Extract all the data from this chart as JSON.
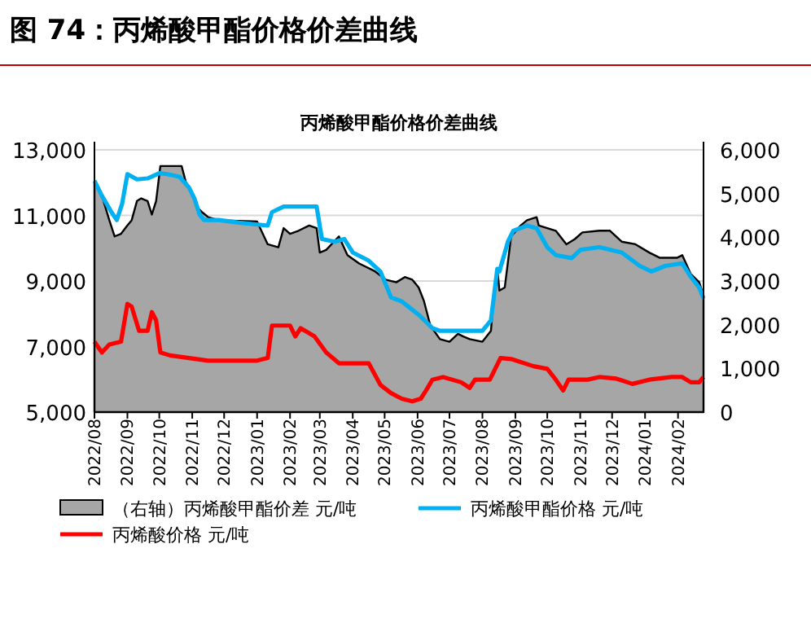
{
  "chart_data": {
    "type": "line",
    "title": "图 74：丙烯酸甲酯价格价差曲线",
    "subtitle": "丙烯酸甲酯价格价差曲线",
    "xlim": [
      "2022-08-01",
      "2024-02-25"
    ],
    "xticks": [
      {
        "value": "2022-08",
        "label": "2022/08"
      },
      {
        "value": "2022-09",
        "label": "2022/09"
      },
      {
        "value": "2022-10",
        "label": "2022/10"
      },
      {
        "value": "2022-11",
        "label": "2022/11"
      },
      {
        "value": "2022-12",
        "label": "2022/12"
      },
      {
        "value": "2023-01",
        "label": "2023/01"
      },
      {
        "value": "2023-02",
        "label": "2023/02"
      },
      {
        "value": "2023-03",
        "label": "2023/03"
      },
      {
        "value": "2023-04",
        "label": "2023/04"
      },
      {
        "value": "2023-05",
        "label": "2023/05"
      },
      {
        "value": "2023-06",
        "label": "2023/06"
      },
      {
        "value": "2023-07",
        "label": "2023/07"
      },
      {
        "value": "2023-08",
        "label": "2023/08"
      },
      {
        "value": "2023-09",
        "label": "2023/09"
      },
      {
        "value": "2023-10",
        "label": "2023/10"
      },
      {
        "value": "2023-11",
        "label": "2023/11"
      },
      {
        "value": "2023-12",
        "label": "2023/12"
      },
      {
        "value": "2024-01",
        "label": "2024/01"
      },
      {
        "value": "2024-02",
        "label": "2024/02"
      }
    ],
    "ylim": [
      5000,
      13000
    ],
    "yticks": [
      {
        "value": 5000,
        "label": "5,000"
      },
      {
        "value": 7000,
        "label": "7,000"
      },
      {
        "value": 9000,
        "label": "9,000"
      },
      {
        "value": 11000,
        "label": "11,000"
      },
      {
        "value": 13000,
        "label": "13,000"
      }
    ],
    "y2lim": [
      0,
      6000
    ],
    "y2ticks": [
      0,
      {
        "value": 1000,
        "label": "1,000"
      },
      {
        "value": 2000,
        "label": "2,000"
      },
      {
        "value": 3000,
        "label": "3,000"
      },
      {
        "value": 4000,
        "label": "4,000"
      },
      {
        "value": 5000,
        "label": "5,000"
      },
      {
        "value": 6000,
        "label": "6,000"
      }
    ],
    "grid": "y",
    "legend": "bottom",
    "line_style": "solid",
    "series": [
      {
        "type": "area",
        "axis": "y2",
        "name": "（右轴）丙烯酸甲酯价差 元/吨",
        "color": "#a6a6a6",
        "x": [
          "2022-08-01",
          "2022-08-08",
          "2022-08-15",
          "2022-08-20",
          "2022-08-26",
          "2022-09-01",
          "2022-09-05",
          "2022-09-10",
          "2022-09-14",
          "2022-09-20",
          "2022-09-24",
          "2022-09-28",
          "2022-10-02",
          "2022-10-22",
          "2022-10-26",
          "2022-11-01",
          "2022-11-05",
          "2022-11-10",
          "2022-11-16",
          "2022-11-26",
          "2023-01-01",
          "2023-01-11",
          "2023-01-21",
          "2023-01-26",
          "2023-02-01",
          "2023-02-09",
          "2023-02-19",
          "2023-02-26",
          "2023-03-01",
          "2023-03-07",
          "2023-03-19",
          "2023-03-27",
          "2023-04-07",
          "2023-04-22",
          "2023-05-02",
          "2023-05-12",
          "2023-05-20",
          "2023-05-27",
          "2023-06-02",
          "2023-06-07",
          "2023-06-13",
          "2023-06-22",
          "2023-07-01",
          "2023-07-09",
          "2023-07-14",
          "2023-07-20",
          "2023-08-01",
          "2023-08-09",
          "2023-08-12",
          "2023-08-15",
          "2023-08-17",
          "2023-08-22",
          "2023-08-28",
          "2023-09-06",
          "2023-09-12",
          "2023-09-21",
          "2023-09-23",
          "2023-10-01",
          "2023-10-09",
          "2023-10-19",
          "2023-10-27",
          "2023-11-03",
          "2023-11-19",
          "2023-11-29",
          "2023-12-10",
          "2023-12-23",
          "2024-01-05",
          "2024-01-15",
          "2024-01-31",
          "2024-02-05",
          "2024-02-13",
          "2024-02-21",
          "2024-02-25"
        ],
        "values": [
          5260,
          4950,
          4390,
          4020,
          4080,
          4270,
          4390,
          4830,
          4890,
          4830,
          4520,
          4830,
          5630,
          5630,
          5260,
          5010,
          4700,
          4580,
          4460,
          4390,
          4360,
          3840,
          3770,
          4210,
          4080,
          4150,
          4270,
          4210,
          3650,
          3710,
          4020,
          3590,
          3400,
          3220,
          3030,
          2970,
          3090,
          3030,
          2850,
          2540,
          1980,
          1670,
          1610,
          1790,
          1730,
          1670,
          1610,
          1860,
          2720,
          3280,
          2780,
          2850,
          4020,
          4270,
          4390,
          4460,
          4270,
          4210,
          4150,
          3840,
          3960,
          4110,
          4150,
          4150,
          3900,
          3840,
          3650,
          3530,
          3530,
          3590,
          3160,
          2970,
          2660
        ]
      },
      {
        "name": "丙烯酸甲酯价格 元/吨",
        "color": "#00b0f0",
        "x": [
          "2022-08-01",
          "2022-08-08",
          "2022-08-17",
          "2022-08-22",
          "2022-08-27",
          "2022-09-01",
          "2022-09-10",
          "2022-09-20",
          "2022-10-01",
          "2022-10-08",
          "2022-10-20",
          "2022-10-29",
          "2022-11-03",
          "2022-11-08",
          "2022-11-12",
          "2022-11-26",
          "2022-12-15",
          "2023-01-11",
          "2023-01-15",
          "2023-01-26",
          "2023-02-26",
          "2023-03-03",
          "2023-03-15",
          "2023-03-24",
          "2023-04-01",
          "2023-04-16",
          "2023-04-27",
          "2023-05-07",
          "2023-05-17",
          "2023-06-02",
          "2023-06-15",
          "2023-06-22",
          "2023-08-01",
          "2023-08-09",
          "2023-08-15",
          "2023-08-17",
          "2023-08-25",
          "2023-08-30",
          "2023-09-12",
          "2023-09-21",
          "2023-10-01",
          "2023-10-09",
          "2023-10-24",
          "2023-11-01",
          "2023-11-19",
          "2023-12-10",
          "2023-12-27",
          "2024-01-07",
          "2024-01-20",
          "2024-02-05",
          "2024-02-13",
          "2024-02-21",
          "2024-02-25"
        ],
        "values": [
          12060,
          11600,
          11100,
          10860,
          11350,
          12260,
          12100,
          12130,
          12290,
          12260,
          12180,
          11850,
          11520,
          11020,
          10860,
          10860,
          10780,
          10690,
          11100,
          11270,
          11270,
          10280,
          10200,
          10280,
          9870,
          9620,
          9290,
          8500,
          8380,
          7970,
          7560,
          7480,
          7480,
          7800,
          9370,
          9290,
          10200,
          10530,
          10690,
          10610,
          10030,
          9790,
          9700,
          9950,
          10030,
          9870,
          9460,
          9290,
          9460,
          9540,
          9130,
          8800,
          8470
        ]
      },
      {
        "name": "丙烯酸价格 元/吨",
        "color": "#ff0000",
        "x": [
          "2022-08-01",
          "2022-08-08",
          "2022-08-15",
          "2022-08-26",
          "2022-09-01",
          "2022-09-05",
          "2022-09-12",
          "2022-09-20",
          "2022-09-24",
          "2022-09-28",
          "2022-10-02",
          "2022-10-11",
          "2022-11-16",
          "2023-01-01",
          "2023-01-11",
          "2023-01-15",
          "2023-02-01",
          "2023-02-06",
          "2023-02-11",
          "2023-02-24",
          "2023-03-07",
          "2023-03-19",
          "2023-04-16",
          "2023-04-27",
          "2023-05-07",
          "2023-05-17",
          "2023-05-27",
          "2023-06-04",
          "2023-06-09",
          "2023-06-15",
          "2023-06-25",
          "2023-07-12",
          "2023-07-20",
          "2023-07-25",
          "2023-08-08",
          "2023-08-18",
          "2023-08-28",
          "2023-09-18",
          "2023-10-01",
          "2023-10-09",
          "2023-10-16",
          "2023-10-21",
          "2023-11-08",
          "2023-11-19",
          "2023-12-05",
          "2023-12-20",
          "2024-01-05",
          "2024-01-26",
          "2024-02-05",
          "2024-02-13",
          "2024-02-21",
          "2024-02-25"
        ],
        "values": [
          7150,
          6820,
          7060,
          7150,
          8300,
          8220,
          7480,
          7480,
          8050,
          7800,
          6820,
          6730,
          6570,
          6570,
          6650,
          7640,
          7640,
          7310,
          7560,
          7310,
          6820,
          6490,
          6490,
          5830,
          5580,
          5410,
          5330,
          5410,
          5660,
          5990,
          6070,
          5910,
          5740,
          5990,
          5990,
          6650,
          6620,
          6400,
          6320,
          5990,
          5660,
          5990,
          5990,
          6070,
          6020,
          5860,
          5990,
          6070,
          6070,
          5910,
          5910,
          6070
        ]
      }
    ]
  }
}
